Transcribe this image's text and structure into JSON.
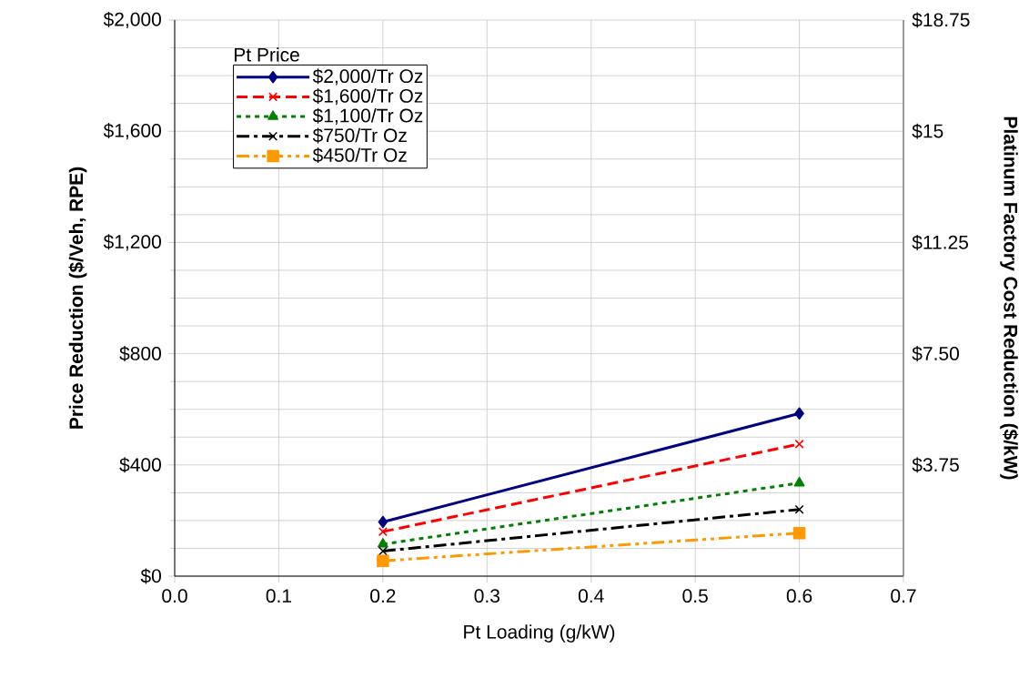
{
  "chart_data": {
    "type": "line",
    "xlabel": "Pt Loading (g/kW)",
    "ylabel": "Price Reduction ($/Veh, RPE)",
    "y2label": "Platinum Factory Cost Reduction ($/kW)",
    "legend_title": "Pt Price",
    "legend": "top left",
    "grid": true,
    "x": [
      0.2,
      0.6
    ],
    "xlim": [
      0,
      0.7
    ],
    "xticks": [
      {
        "value": 0,
        "label": "0.0"
      },
      {
        "value": 0.1,
        "label": "0.1"
      },
      {
        "value": 0.2,
        "label": "0.2"
      },
      {
        "value": 0.3,
        "label": "0.3"
      },
      {
        "value": 0.4,
        "label": "0.4"
      },
      {
        "value": 0.5,
        "label": "0.5"
      },
      {
        "value": 0.6,
        "label": "0.6"
      },
      {
        "value": 0.7,
        "label": "0.7"
      }
    ],
    "ylim": [
      0,
      2000
    ],
    "yticks": [
      {
        "value": 0,
        "label": "$0"
      },
      {
        "value": 100,
        "label": null
      },
      {
        "value": 200,
        "label": null
      },
      {
        "value": 300,
        "label": null
      },
      {
        "value": 400,
        "label": "$400"
      },
      {
        "value": 500,
        "label": null
      },
      {
        "value": 600,
        "label": null
      },
      {
        "value": 700,
        "label": null
      },
      {
        "value": 800,
        "label": "$800"
      },
      {
        "value": 900,
        "label": null
      },
      {
        "value": 1000,
        "label": null
      },
      {
        "value": 1100,
        "label": null
      },
      {
        "value": 1200,
        "label": "$1,200"
      },
      {
        "value": 1300,
        "label": null
      },
      {
        "value": 1400,
        "label": null
      },
      {
        "value": 1500,
        "label": null
      },
      {
        "value": 1600,
        "label": "$1,600"
      },
      {
        "value": 1700,
        "label": null
      },
      {
        "value": 1800,
        "label": null
      },
      {
        "value": 1900,
        "label": null
      },
      {
        "value": 2000,
        "label": "$2,000"
      }
    ],
    "y2lim": [
      0,
      18.75
    ],
    "y2ticks": [
      {
        "value": 3.75,
        "label": "$3.75"
      },
      {
        "value": 7.5,
        "label": "$7.50"
      },
      {
        "value": 11.25,
        "label": "$11.25"
      },
      {
        "value": 15,
        "label": "$15"
      },
      {
        "value": 18.75,
        "label": "$18.75"
      }
    ],
    "series": [
      {
        "name": "$2,000/Tr Oz",
        "color": "#000080",
        "marker": "diamond",
        "line_style": "solid",
        "values": [
          195,
          585
        ]
      },
      {
        "name": "$1,600/Tr Oz",
        "color": "#ff0000",
        "marker": "cross",
        "line_style": "dashed",
        "values": [
          160,
          475
        ]
      },
      {
        "name": "$1,100/Tr Oz",
        "color": "#008000",
        "marker": "triangle",
        "line_style": "dotted",
        "values": [
          115,
          335
        ]
      },
      {
        "name": "$750/Tr Oz",
        "color": "#000000",
        "marker": "cross",
        "line_style": "dashdot",
        "values": [
          90,
          240
        ]
      },
      {
        "name": "$450/Tr Oz",
        "color": "#ff9900",
        "marker": "square",
        "line_style": "dashdotdot",
        "values": [
          55,
          155
        ]
      }
    ]
  }
}
